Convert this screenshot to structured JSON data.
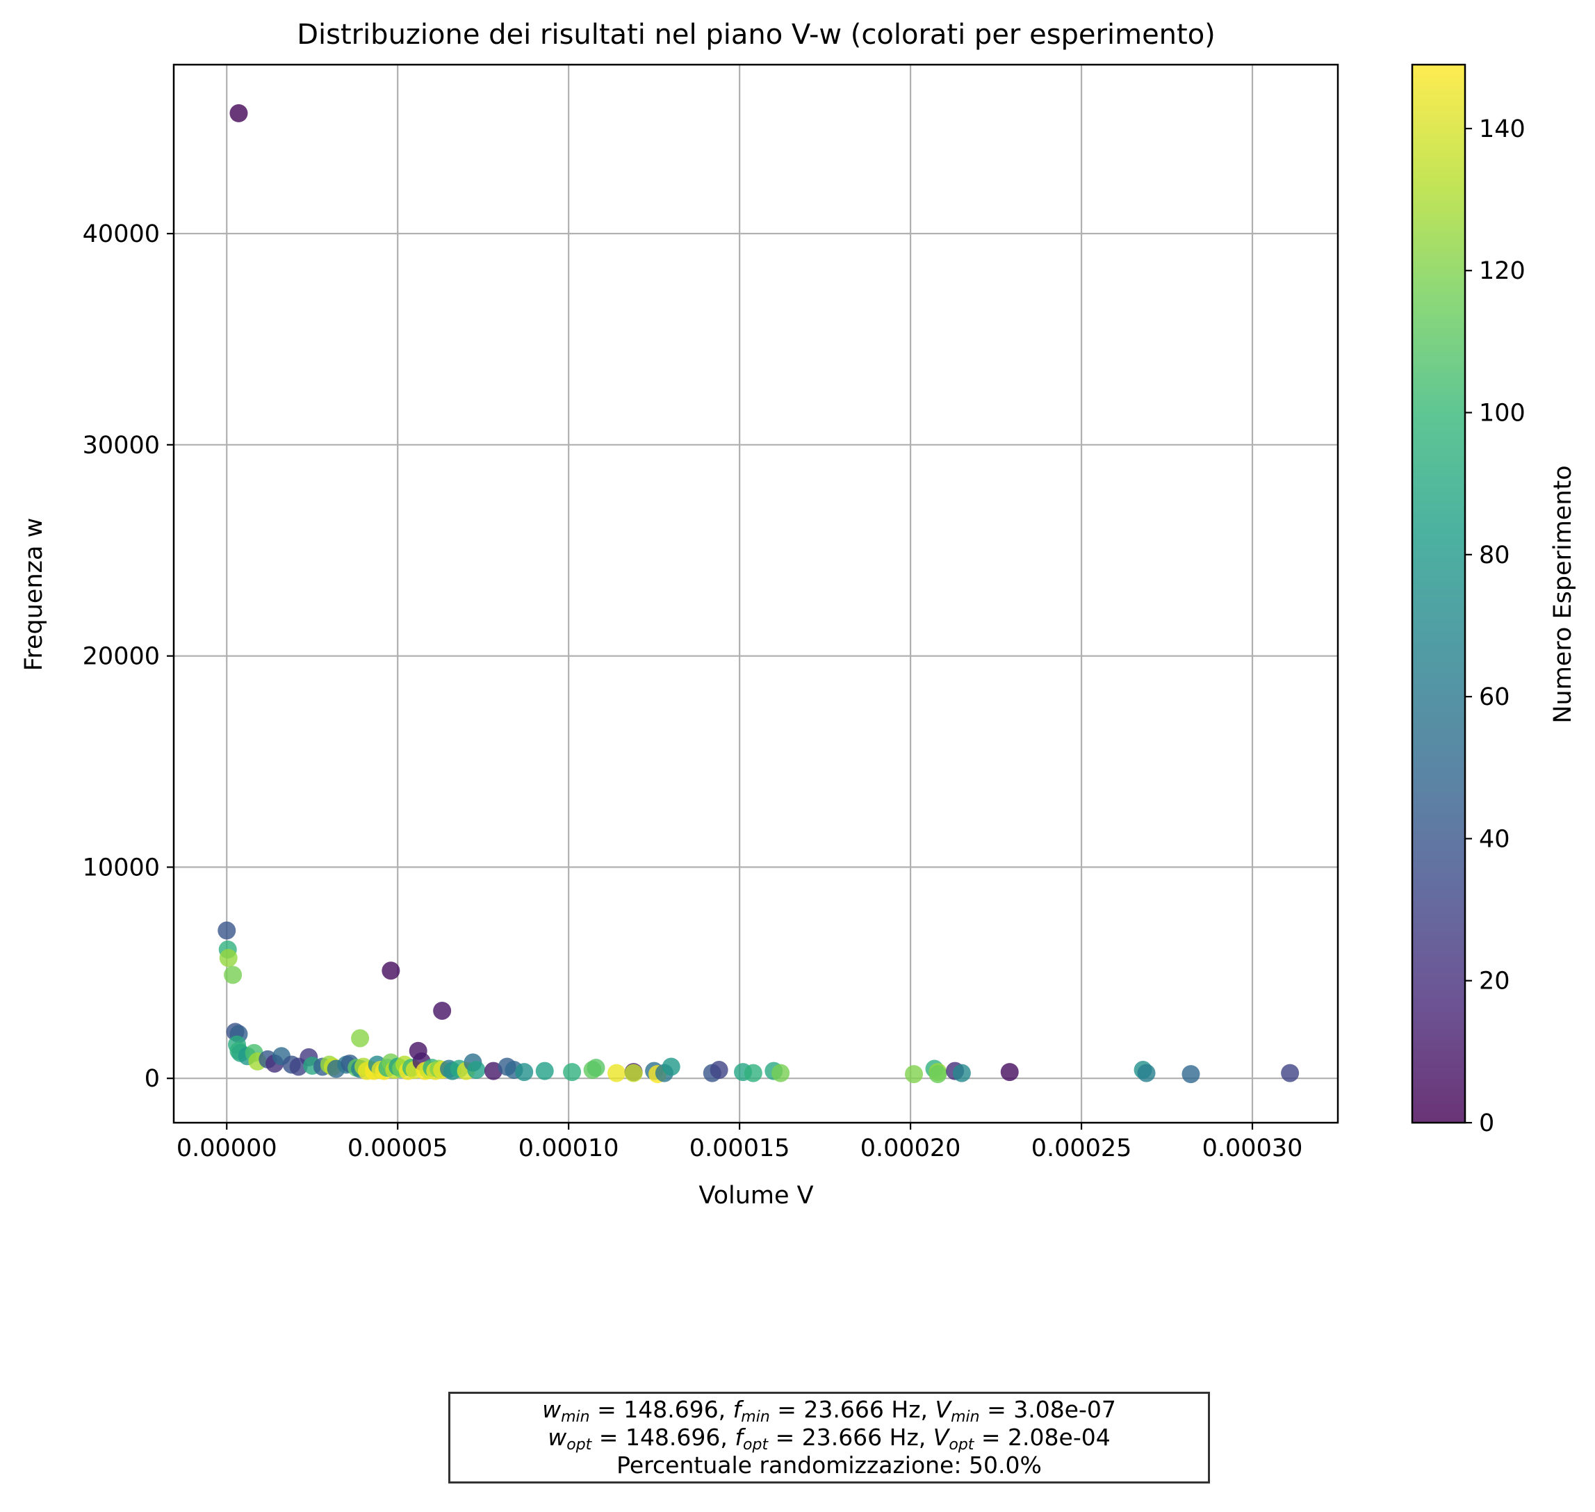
{
  "colors": {
    "viridis": [
      "#440154",
      "#482878",
      "#3e4989",
      "#31688e",
      "#26828e",
      "#1f9e89",
      "#35b779",
      "#6ece58",
      "#b5de2b",
      "#fde725"
    ],
    "grid": "#b0b0b0",
    "frame": "#000000",
    "point_alpha": 0.8
  },
  "chart_data": {
    "type": "scatter",
    "title": "Distribuzione dei risultati nel piano V-w (colorati per esperimento)",
    "xlabel": "Volume V",
    "ylabel": "Frequenza w",
    "xlim": [
      -1.55e-05,
      0.000325
    ],
    "ylim": [
      -2100,
      48000
    ],
    "xticks": [
      {
        "value": 0.0,
        "label": "0.00000"
      },
      {
        "value": 5e-05,
        "label": "0.00005"
      },
      {
        "value": 0.0001,
        "label": "0.00010"
      },
      {
        "value": 0.00015,
        "label": "0.00015"
      },
      {
        "value": 0.0002,
        "label": "0.00020"
      },
      {
        "value": 0.00025,
        "label": "0.00025"
      },
      {
        "value": 0.0003,
        "label": "0.00030"
      }
    ],
    "yticks": [
      {
        "value": 0,
        "label": "0"
      },
      {
        "value": 10000,
        "label": "10000"
      },
      {
        "value": 20000,
        "label": "20000"
      },
      {
        "value": 30000,
        "label": "30000"
      },
      {
        "value": 40000,
        "label": "40000"
      }
    ],
    "grid": true,
    "colorbar": {
      "label": "Numero Esperimento",
      "range": [
        0,
        149
      ],
      "ticks": [
        {
          "value": 0,
          "label": "0"
        },
        {
          "value": 20,
          "label": "20"
        },
        {
          "value": 40,
          "label": "40"
        },
        {
          "value": 60,
          "label": "60"
        },
        {
          "value": 80,
          "label": "80"
        },
        {
          "value": 100,
          "label": "100"
        },
        {
          "value": 120,
          "label": "120"
        },
        {
          "value": 140,
          "label": "140"
        }
      ]
    },
    "points": [
      {
        "x": 3.5e-06,
        "y": 45700,
        "c": 2
      },
      {
        "x": 0.0,
        "y": 7000,
        "c": 40
      },
      {
        "x": 3e-07,
        "y": 6100,
        "c": 95
      },
      {
        "x": 5e-07,
        "y": 5700,
        "c": 125
      },
      {
        "x": 1.8e-06,
        "y": 4900,
        "c": 118
      },
      {
        "x": 4.8e-05,
        "y": 5100,
        "c": 5
      },
      {
        "x": 6.3e-05,
        "y": 3200,
        "c": 8
      },
      {
        "x": 3.9e-05,
        "y": 1900,
        "c": 122
      },
      {
        "x": 2.5e-06,
        "y": 2200,
        "c": 38
      },
      {
        "x": 3.5e-06,
        "y": 2100,
        "c": 45
      },
      {
        "x": 3e-06,
        "y": 1600,
        "c": 92
      },
      {
        "x": 3.5e-06,
        "y": 1300,
        "c": 96
      },
      {
        "x": 4e-06,
        "y": 1200,
        "c": 90
      },
      {
        "x": 6e-06,
        "y": 1050,
        "c": 80
      },
      {
        "x": 8e-06,
        "y": 1200,
        "c": 105
      },
      {
        "x": 9e-06,
        "y": 800,
        "c": 128
      },
      {
        "x": 1.2e-05,
        "y": 900,
        "c": 42
      },
      {
        "x": 1.4e-05,
        "y": 700,
        "c": 20
      },
      {
        "x": 1.6e-05,
        "y": 1050,
        "c": 52
      },
      {
        "x": 1.9e-05,
        "y": 650,
        "c": 38
      },
      {
        "x": 2.1e-05,
        "y": 550,
        "c": 30
      },
      {
        "x": 2.4e-05,
        "y": 1000,
        "c": 25
      },
      {
        "x": 2.5e-05,
        "y": 600,
        "c": 90
      },
      {
        "x": 2.8e-05,
        "y": 550,
        "c": 45
      },
      {
        "x": 3e-05,
        "y": 650,
        "c": 125
      },
      {
        "x": 3.1e-05,
        "y": 550,
        "c": 136
      },
      {
        "x": 3.2e-05,
        "y": 450,
        "c": 52
      },
      {
        "x": 3.5e-05,
        "y": 650,
        "c": 60
      },
      {
        "x": 3.6e-05,
        "y": 700,
        "c": 45
      },
      {
        "x": 3.8e-05,
        "y": 500,
        "c": 110
      },
      {
        "x": 3.9e-05,
        "y": 450,
        "c": 65
      },
      {
        "x": 4e-05,
        "y": 550,
        "c": 130
      },
      {
        "x": 4.1e-05,
        "y": 350,
        "c": 145
      },
      {
        "x": 4.2e-05,
        "y": 400,
        "c": 140
      },
      {
        "x": 4.3e-05,
        "y": 350,
        "c": 148
      },
      {
        "x": 4.4e-05,
        "y": 650,
        "c": 70
      },
      {
        "x": 4.5e-05,
        "y": 400,
        "c": 142
      },
      {
        "x": 4.6e-05,
        "y": 350,
        "c": 147
      },
      {
        "x": 4.7e-05,
        "y": 500,
        "c": 98
      },
      {
        "x": 4.8e-05,
        "y": 750,
        "c": 118
      },
      {
        "x": 4.9e-05,
        "y": 400,
        "c": 135
      },
      {
        "x": 5e-05,
        "y": 550,
        "c": 85
      },
      {
        "x": 5.1e-05,
        "y": 450,
        "c": 115
      },
      {
        "x": 5.2e-05,
        "y": 650,
        "c": 132
      },
      {
        "x": 5.3e-05,
        "y": 350,
        "c": 146
      },
      {
        "x": 5.4e-05,
        "y": 500,
        "c": 100
      },
      {
        "x": 5.5e-05,
        "y": 400,
        "c": 140
      },
      {
        "x": 5.6e-05,
        "y": 1300,
        "c": 8
      },
      {
        "x": 5.7e-05,
        "y": 800,
        "c": 12
      },
      {
        "x": 5.8e-05,
        "y": 350,
        "c": 148
      },
      {
        "x": 5.9e-05,
        "y": 400,
        "c": 138
      },
      {
        "x": 6e-05,
        "y": 500,
        "c": 95
      },
      {
        "x": 6.1e-05,
        "y": 350,
        "c": 144
      },
      {
        "x": 6.2e-05,
        "y": 450,
        "c": 120
      },
      {
        "x": 6.3e-05,
        "y": 400,
        "c": 143
      },
      {
        "x": 6.5e-05,
        "y": 450,
        "c": 60
      },
      {
        "x": 6.6e-05,
        "y": 350,
        "c": 75
      },
      {
        "x": 6.8e-05,
        "y": 450,
        "c": 90
      },
      {
        "x": 7e-05,
        "y": 350,
        "c": 140
      },
      {
        "x": 7.2e-05,
        "y": 750,
        "c": 55
      },
      {
        "x": 7.3e-05,
        "y": 400,
        "c": 85
      },
      {
        "x": 7.8e-05,
        "y": 350,
        "c": 10
      },
      {
        "x": 8.2e-05,
        "y": 550,
        "c": 45
      },
      {
        "x": 8.4e-05,
        "y": 400,
        "c": 50
      },
      {
        "x": 8.7e-05,
        "y": 300,
        "c": 75
      },
      {
        "x": 9.3e-05,
        "y": 350,
        "c": 85
      },
      {
        "x": 0.000101,
        "y": 300,
        "c": 95
      },
      {
        "x": 0.000107,
        "y": 400,
        "c": 112
      },
      {
        "x": 0.000108,
        "y": 500,
        "c": 110
      },
      {
        "x": 0.000114,
        "y": 250,
        "c": 145
      },
      {
        "x": 0.000119,
        "y": 300,
        "c": 12
      },
      {
        "x": 0.000119,
        "y": 250,
        "c": 135
      },
      {
        "x": 0.000125,
        "y": 350,
        "c": 55
      },
      {
        "x": 0.000126,
        "y": 200,
        "c": 148
      },
      {
        "x": 0.000128,
        "y": 250,
        "c": 60
      },
      {
        "x": 0.00013,
        "y": 550,
        "c": 80
      },
      {
        "x": 0.000142,
        "y": 250,
        "c": 40
      },
      {
        "x": 0.000144,
        "y": 400,
        "c": 30
      },
      {
        "x": 0.000151,
        "y": 300,
        "c": 88
      },
      {
        "x": 0.000154,
        "y": 250,
        "c": 95
      },
      {
        "x": 0.00016,
        "y": 350,
        "c": 90
      },
      {
        "x": 0.000162,
        "y": 250,
        "c": 118
      },
      {
        "x": 0.000201,
        "y": 200,
        "c": 120
      },
      {
        "x": 0.000207,
        "y": 450,
        "c": 95
      },
      {
        "x": 0.000208,
        "y": 300,
        "c": 125
      },
      {
        "x": 0.000208,
        "y": 200,
        "c": 115
      },
      {
        "x": 0.000213,
        "y": 350,
        "c": 20
      },
      {
        "x": 0.000215,
        "y": 250,
        "c": 70
      },
      {
        "x": 0.000229,
        "y": 300,
        "c": 5
      },
      {
        "x": 0.000268,
        "y": 400,
        "c": 75
      },
      {
        "x": 0.000269,
        "y": 250,
        "c": 65
      },
      {
        "x": 0.000282,
        "y": 200,
        "c": 50
      },
      {
        "x": 0.000311,
        "y": 250,
        "c": 30
      }
    ]
  },
  "info_box": {
    "line1": {
      "w_sym": "w",
      "w_sub": "min",
      "w_val": " = 148.696, ",
      "f_sym": "f",
      "f_sub": "min",
      "f_val": " = 23.666 Hz, ",
      "v_sym": "V",
      "v_sub": "min",
      "v_val": " = 3.08e-07"
    },
    "line2": {
      "w_sym": "w",
      "w_sub": "opt",
      "w_val": " = 148.696, ",
      "f_sym": "f",
      "f_sub": "opt",
      "f_val": " = 23.666 Hz, ",
      "v_sym": "V",
      "v_sub": "opt",
      "v_val": " = 2.08e-04"
    },
    "line3": "Percentuale randomizzazione: 50.0%"
  }
}
